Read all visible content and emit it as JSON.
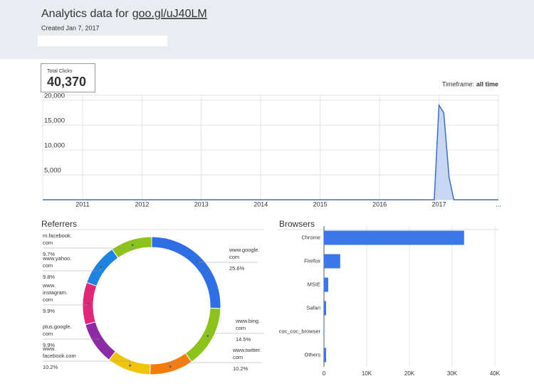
{
  "header": {
    "title": "Analytics data for",
    "link": "goo.gl/uJ40LM",
    "created": "Created Jan 7, 2017"
  },
  "total_clicks": {
    "label": "Total Clicks",
    "value": "40,370"
  },
  "timeframe": {
    "label": "Timeframe:",
    "value": "all time"
  },
  "chart_data": [
    {
      "type": "area",
      "x": [
        2010.33,
        2016.92,
        2017.0,
        2017.08,
        2017.17,
        2017.25,
        2018
      ],
      "values": [
        0,
        0,
        19000,
        17500,
        4500,
        0,
        0
      ],
      "color": "#3b6fbd",
      "fill": "#c6d6f3",
      "xlim": [
        2010.33,
        2018
      ],
      "xticks": [
        2011,
        2012,
        2013,
        2014,
        2015,
        2016,
        2017,
        {
          "value": 2018,
          "label": "..."
        }
      ],
      "ylim": [
        0,
        21000
      ],
      "yticks": [
        {
          "value": 5000,
          "label": "5,000"
        },
        {
          "value": 10000,
          "label": "10,000"
        },
        {
          "value": 15000,
          "label": "15,000"
        },
        {
          "value": 20000,
          "label": "20,000"
        }
      ],
      "grid": true
    },
    {
      "type": "donut",
      "title": "Referrers",
      "categories": [
        [
          "www.google.",
          "com"
        ],
        [
          "www.bing.",
          "com"
        ],
        [
          "www.twitter.",
          "com"
        ],
        [
          "www.",
          "facebook.com"
        ],
        [
          "plus.google.",
          "com"
        ],
        [
          "www.",
          "instagram.",
          "com"
        ],
        [
          "www.yahoo.",
          "com"
        ],
        [
          "m.facebook.",
          "com"
        ]
      ],
      "values": [
        25.6,
        14.5,
        10.2,
        10.2,
        9.9,
        9.9,
        9.8,
        9.7
      ],
      "value_labels": [
        "25.6%",
        "14.5%",
        "10.2%",
        "10.2%",
        "9.9%",
        "9.9%",
        "9.8%",
        "9.7%"
      ],
      "colors": [
        "#2f6fe4",
        "#8cc21c",
        "#f57c0c",
        "#f0c40a",
        "#8e2aa6",
        "#e0287a",
        "#1e84e0",
        "#8cc21c"
      ]
    },
    {
      "type": "hbar",
      "title": "Browsers",
      "categories": [
        "Chrome",
        "Firefox",
        "MSIE",
        "Safari",
        "coc_coc_browser",
        "Others"
      ],
      "values": [
        32800,
        3800,
        1000,
        500,
        100,
        500
      ],
      "color": "#3b78e7",
      "xlim": [
        0,
        40000
      ],
      "xticks": [
        0,
        {
          "value": 10000,
          "label": "10K"
        },
        {
          "value": 20000,
          "label": "20K"
        },
        {
          "value": 30000,
          "label": "30K"
        },
        {
          "value": 40000,
          "label": "40K"
        }
      ],
      "grid": true
    }
  ]
}
